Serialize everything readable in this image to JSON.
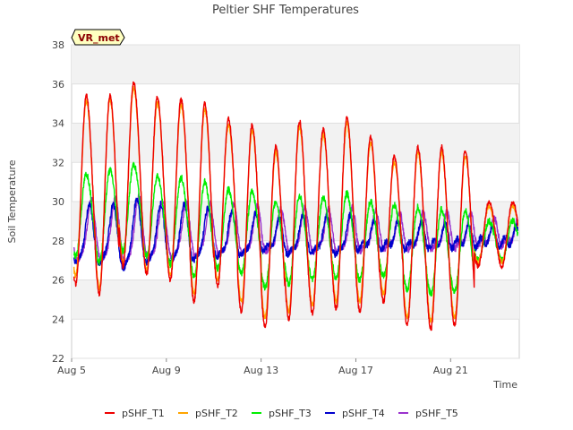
{
  "chart_data": {
    "type": "line",
    "title": "Peltier SHF Temperatures",
    "xlabel": "Time",
    "ylabel": "Soil Temperature",
    "badge": "VR_met",
    "x_start": "Aug 5",
    "x_end": "Aug 22.9",
    "xlim_days": [
      5,
      23.9
    ],
    "x_ticks": [
      "Aug 5",
      "Aug 9",
      "Aug 13",
      "Aug 17",
      "Aug 21"
    ],
    "y_ticks": [
      22,
      24,
      26,
      28,
      30,
      32,
      34,
      36,
      38
    ],
    "ylim": [
      22,
      38
    ],
    "grid": true,
    "legend_position": "bottom",
    "colors": {
      "pSHF_T1": "#ee0000",
      "pSHF_T2": "#ffa500",
      "pSHF_T3": "#00ee00",
      "pSHF_T4": "#0000cd",
      "pSHF_T5": "#9a32cd"
    },
    "daily_peaks": {
      "days": [
        "Aug 5",
        "Aug 6",
        "Aug 7",
        "Aug 8",
        "Aug 9",
        "Aug 10",
        "Aug 11",
        "Aug 12",
        "Aug 13",
        "Aug 14",
        "Aug 15",
        "Aug 16",
        "Aug 17",
        "Aug 18",
        "Aug 19",
        "Aug 20",
        "Aug 21",
        "Aug 22"
      ],
      "series": [
        {
          "name": "pSHF_T1",
          "max": [
            35.4,
            35.4,
            36.1,
            35.3,
            35.2,
            35.0,
            34.2,
            33.9,
            32.8,
            34.1,
            33.7,
            34.3,
            33.3,
            32.3,
            32.8,
            32.8,
            32.6,
            30.0
          ],
          "min": [
            25.8,
            25.3,
            26.7,
            26.3,
            26.0,
            24.9,
            25.7,
            24.4,
            23.6,
            24.0,
            24.3,
            24.5,
            24.4,
            24.9,
            23.7,
            23.5,
            23.7,
            26.7
          ]
        },
        {
          "name": "pSHF_T2",
          "max": [
            35.1,
            35.2,
            35.8,
            35.0,
            34.9,
            34.7,
            33.9,
            33.6,
            32.5,
            33.8,
            33.4,
            34.0,
            33.0,
            32.0,
            32.5,
            32.5,
            32.3,
            29.8
          ],
          "min": [
            26.2,
            25.6,
            26.9,
            26.5,
            26.3,
            25.3,
            26.0,
            24.9,
            24.1,
            24.4,
            24.7,
            24.9,
            24.9,
            25.3,
            24.1,
            23.9,
            24.1,
            26.9
          ]
        },
        {
          "name": "pSHF_T3",
          "max": [
            31.4,
            31.6,
            31.9,
            31.3,
            31.2,
            31.0,
            30.6,
            30.5,
            30.0,
            30.3,
            30.2,
            30.4,
            30.0,
            29.8,
            29.7,
            29.6,
            29.5,
            29.0
          ],
          "min": [
            27.2,
            26.9,
            27.5,
            27.2,
            26.8,
            26.2,
            26.6,
            26.3,
            25.6,
            25.8,
            26.0,
            26.1,
            26.0,
            26.2,
            25.5,
            25.3,
            25.4,
            27.0
          ]
        },
        {
          "name": "pSHF_T4",
          "max": [
            30.0,
            30.0,
            30.4,
            30.0,
            30.0,
            29.8,
            29.5,
            29.4,
            29.0,
            29.3,
            29.2,
            29.3,
            28.9,
            28.8,
            28.8,
            28.7,
            28.6,
            28.5
          ]
        },
        {
          "name": "pSHF_T5",
          "max": [
            30.3,
            30.3,
            30.5,
            30.2,
            30.1,
            30.0,
            29.9,
            29.8,
            29.6,
            29.7,
            29.6,
            29.7,
            29.5,
            29.4,
            29.4,
            29.4,
            29.3,
            29.0
          ]
        }
      ]
    }
  }
}
